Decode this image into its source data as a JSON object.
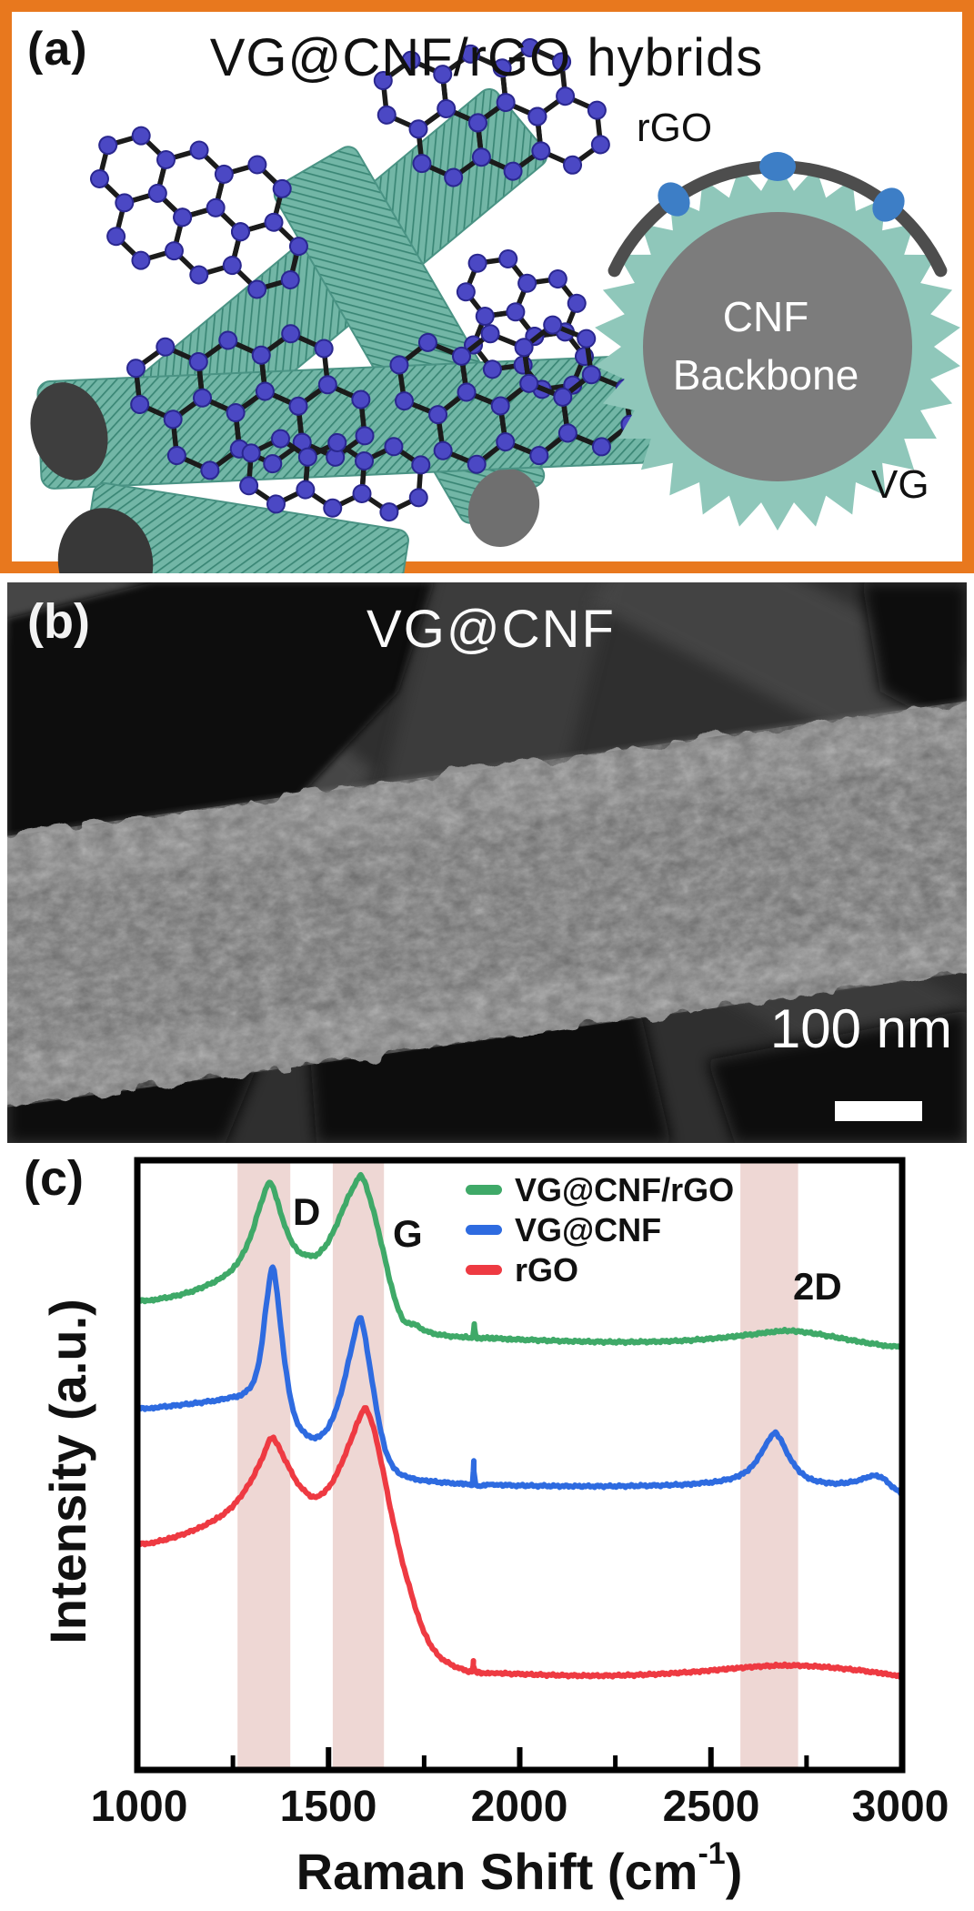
{
  "panel_a": {
    "label": "(a)",
    "title": "VG@CNF/rGO hybrids",
    "schematic": {
      "rgo_label": "rGO",
      "vg_label": "VG",
      "core_label_line1": "CNF",
      "core_label_line2": "Backbone"
    },
    "colors": {
      "border_orange": "#e8781e",
      "fiber_teal": "#72b6a6",
      "fiber_hatch": "#3a8675",
      "vg_ring_teal": "#8fc7ba",
      "cnf_gray": "#7c7c7c",
      "rgo_arc_gray": "#4d4d4d",
      "rgo_dot_blue": "#3d7ec6",
      "lattice_node_blue": "#4b48c4",
      "lattice_bond_black": "#1b1b1b"
    }
  },
  "panel_b": {
    "label": "(b)",
    "title": "VG@CNF",
    "scalebar_text": "100 nm"
  },
  "panel_c": {
    "label": "(c)",
    "peak_labels": {
      "d": "D",
      "g": "G",
      "two_d": "2D"
    }
  },
  "chart_data": {
    "type": "line",
    "title": "",
    "xlabel_main": "Raman Shift (cm",
    "xlabel_sup": "-1",
    "xlabel_end": ")",
    "ylabel": "Intensity (a.u.)",
    "xlim": [
      1000,
      3000
    ],
    "ylim_au": [
      0,
      260
    ],
    "grid": false,
    "legend_position": "inside-top-right",
    "x_major_ticks": [
      1000,
      1500,
      2000,
      2500,
      3000
    ],
    "x_minor_ticks": [
      1250,
      1750,
      2250,
      2750
    ],
    "band_color": "#eed7d4",
    "highlight_bands_cm": [
      [
        1262,
        1400
      ],
      [
        1511,
        1645
      ],
      [
        2577,
        2728
      ]
    ],
    "series": [
      {
        "name": "VG@CNF/rGO",
        "color": "#3fa968",
        "points": [
          [
            1000,
            200
          ],
          [
            1060,
            201
          ],
          [
            1120,
            203
          ],
          [
            1180,
            206.5
          ],
          [
            1230,
            211
          ],
          [
            1265,
            217
          ],
          [
            1295,
            227
          ],
          [
            1318,
            239
          ],
          [
            1338,
            248.5
          ],
          [
            1348,
            250.3
          ],
          [
            1360,
            246
          ],
          [
            1378,
            236
          ],
          [
            1398,
            227
          ],
          [
            1420,
            221.5
          ],
          [
            1445,
            219.5
          ],
          [
            1458,
            219.2
          ],
          [
            1475,
            220.5
          ],
          [
            1498,
            225
          ],
          [
            1522,
            233
          ],
          [
            1548,
            243
          ],
          [
            1570,
            250
          ],
          [
            1584,
            253.4
          ],
          [
            1598,
            249
          ],
          [
            1618,
            238
          ],
          [
            1642,
            222
          ],
          [
            1668,
            204
          ],
          [
            1695,
            192
          ],
          [
            1725,
            190
          ],
          [
            1758,
            187
          ],
          [
            1795,
            185.5
          ],
          [
            1835,
            184.8
          ],
          [
            1862,
            184.6
          ],
          [
            1877,
            184.6
          ],
          [
            1881,
            190
          ],
          [
            1886,
            184.5
          ],
          [
            1915,
            184.2
          ],
          [
            1965,
            183.8
          ],
          [
            2040,
            183.3
          ],
          [
            2120,
            182.9
          ],
          [
            2200,
            182.6
          ],
          [
            2280,
            182.5
          ],
          [
            2360,
            182.7
          ],
          [
            2440,
            183.2
          ],
          [
            2520,
            184.2
          ],
          [
            2590,
            185.4
          ],
          [
            2650,
            186.6
          ],
          [
            2700,
            187.3
          ],
          [
            2750,
            186.6
          ],
          [
            2810,
            185
          ],
          [
            2870,
            183.2
          ],
          [
            2930,
            181.6
          ],
          [
            3000,
            180.3
          ]
        ]
      },
      {
        "name": "VG@CNF",
        "color": "#2e6be0",
        "points": [
          [
            1000,
            154.1
          ],
          [
            1060,
            154.8
          ],
          [
            1120,
            155.8
          ],
          [
            1180,
            157
          ],
          [
            1240,
            158.6
          ],
          [
            1278,
            160.5
          ],
          [
            1305,
            166
          ],
          [
            1322,
            178
          ],
          [
            1337,
            198
          ],
          [
            1348,
            211
          ],
          [
            1354,
            214.6
          ],
          [
            1362,
            208
          ],
          [
            1375,
            189
          ],
          [
            1390,
            169
          ],
          [
            1408,
            153
          ],
          [
            1428,
            145.5
          ],
          [
            1450,
            142.2
          ],
          [
            1462,
            141.6
          ],
          [
            1480,
            142.8
          ],
          [
            1502,
            147
          ],
          [
            1528,
            158
          ],
          [
            1552,
            174
          ],
          [
            1570,
            187
          ],
          [
            1581,
            192.9
          ],
          [
            1593,
            187
          ],
          [
            1610,
            170
          ],
          [
            1630,
            150
          ],
          [
            1652,
            135
          ],
          [
            1678,
            127.5
          ],
          [
            1705,
            125
          ],
          [
            1745,
            123.6
          ],
          [
            1800,
            122.6
          ],
          [
            1858,
            122
          ],
          [
            1876,
            121.9
          ],
          [
            1880,
            131.9
          ],
          [
            1885,
            121.8
          ],
          [
            1930,
            121.6
          ],
          [
            2000,
            121.3
          ],
          [
            2080,
            121.1
          ],
          [
            2160,
            121
          ],
          [
            2240,
            121
          ],
          [
            2320,
            121.2
          ],
          [
            2400,
            121.5
          ],
          [
            2470,
            122.2
          ],
          [
            2530,
            123.4
          ],
          [
            2580,
            126
          ],
          [
            2615,
            131
          ],
          [
            2645,
            139
          ],
          [
            2665,
            143.6
          ],
          [
            2680,
            141.5
          ],
          [
            2700,
            135
          ],
          [
            2725,
            128.5
          ],
          [
            2755,
            124.5
          ],
          [
            2790,
            122.8
          ],
          [
            2830,
            122.2
          ],
          [
            2880,
            123.2
          ],
          [
            2920,
            125.3
          ],
          [
            2945,
            124.8
          ],
          [
            2970,
            121.5
          ],
          [
            3000,
            117.6
          ]
        ]
      },
      {
        "name": "rGO",
        "color": "#ee3a42",
        "points": [
          [
            1000,
            96.2
          ],
          [
            1055,
            97.5
          ],
          [
            1110,
            100
          ],
          [
            1165,
            103.5
          ],
          [
            1215,
            108
          ],
          [
            1255,
            113.5
          ],
          [
            1290,
            121.5
          ],
          [
            1318,
            130
          ],
          [
            1338,
            137.5
          ],
          [
            1350,
            141.6
          ],
          [
            1364,
            139.5
          ],
          [
            1390,
            131
          ],
          [
            1415,
            123.5
          ],
          [
            1440,
            118.5
          ],
          [
            1460,
            116.4
          ],
          [
            1478,
            117.2
          ],
          [
            1500,
            120.5
          ],
          [
            1525,
            127.5
          ],
          [
            1552,
            138
          ],
          [
            1578,
            149
          ],
          [
            1594,
            154.1
          ],
          [
            1606,
            151.5
          ],
          [
            1622,
            143
          ],
          [
            1642,
            128
          ],
          [
            1665,
            109
          ],
          [
            1690,
            91
          ],
          [
            1715,
            76
          ],
          [
            1742,
            62
          ],
          [
            1772,
            52
          ],
          [
            1805,
            46.5
          ],
          [
            1845,
            43.2
          ],
          [
            1875,
            42.2
          ],
          [
            1879,
            46.6
          ],
          [
            1884,
            42
          ],
          [
            1940,
            41.3
          ],
          [
            2015,
            40.8
          ],
          [
            2095,
            40.4
          ],
          [
            2175,
            40.2
          ],
          [
            2255,
            40.3
          ],
          [
            2335,
            40.7
          ],
          [
            2415,
            41.4
          ],
          [
            2490,
            42.3
          ],
          [
            2560,
            43.3
          ],
          [
            2630,
            44.2
          ],
          [
            2700,
            44.6
          ],
          [
            2760,
            44.3
          ],
          [
            2820,
            43.6
          ],
          [
            2880,
            42.6
          ],
          [
            2940,
            41.4
          ],
          [
            2975,
            40.4
          ],
          [
            3000,
            39.6
          ]
        ]
      }
    ]
  }
}
